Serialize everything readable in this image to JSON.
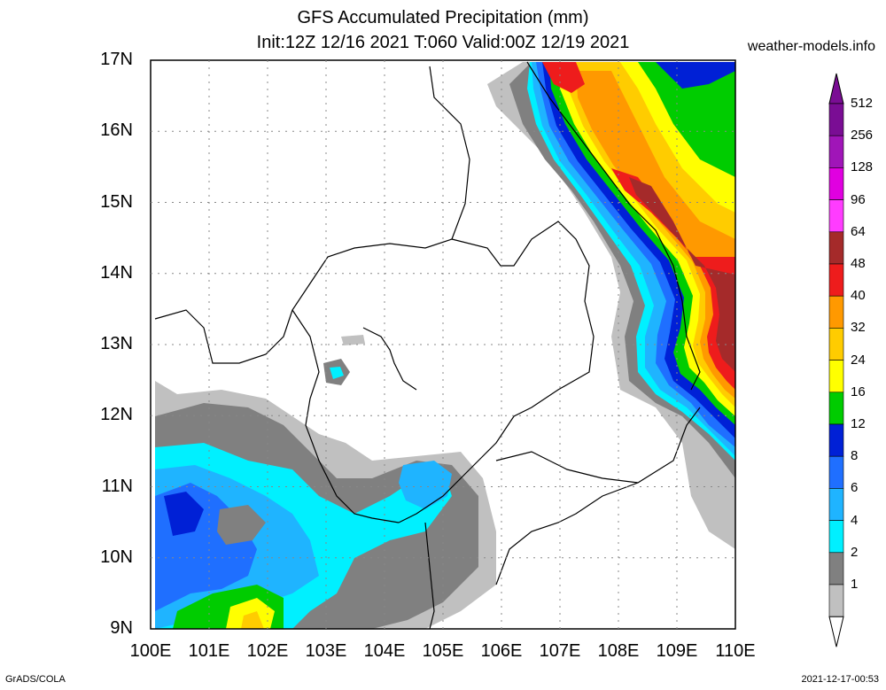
{
  "title": {
    "line1": "GFS Accumulated Precipitation (mm)",
    "line2": "Init:12Z 12/16 2021 T:060 Valid:00Z 12/19 2021"
  },
  "site": "weather-models.info",
  "footer": {
    "left": "GrADS/COLA",
    "right": "2021-12-17-00:53"
  },
  "axes": {
    "lat_labels": [
      "17N",
      "16N",
      "15N",
      "14N",
      "13N",
      "12N",
      "11N",
      "10N",
      "9N"
    ],
    "lon_labels": [
      "100E",
      "101E",
      "102E",
      "103E",
      "104E",
      "105E",
      "106E",
      "107E",
      "108E",
      "109E",
      "110E"
    ]
  },
  "legend": {
    "labels": [
      "512",
      "256",
      "128",
      "96",
      "64",
      "48",
      "40",
      "32",
      "24",
      "16",
      "12",
      "8",
      "6",
      "4",
      "2",
      "1"
    ],
    "colors": [
      "#7a0d94",
      "#a015b8",
      "#e000e0",
      "#ff3cff",
      "#a52a2a",
      "#ee1c1c",
      "#ff9900",
      "#ffcc00",
      "#ffff00",
      "#00cc00",
      "#0020d6",
      "#1f6fff",
      "#1fb4ff",
      "#00f0ff",
      "#808080",
      "#c0c0c0"
    ]
  },
  "colors": {
    "c1": "#c0c0c0",
    "c2": "#808080",
    "c4": "#00f0ff",
    "c6": "#1fb4ff",
    "c8": "#1f6fff",
    "c12": "#0020d6",
    "c16": "#00cc00",
    "c24": "#ffff00",
    "c32": "#ffcc00",
    "c40": "#ff9900",
    "c48": "#ee1c1c",
    "c64": "#a52a2a"
  }
}
